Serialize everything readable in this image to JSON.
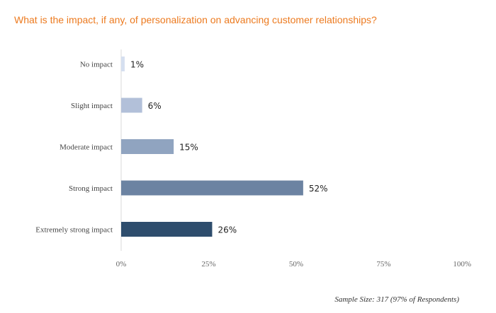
{
  "chart_data": {
    "type": "bar",
    "orientation": "horizontal",
    "title": "What is the impact, if any, of personalization on advancing customer relationships?",
    "categories": [
      "No impact",
      "Slight impact",
      "Moderate impact",
      "Strong impact",
      "Extremely strong impact"
    ],
    "values": [
      1,
      6,
      15,
      52,
      26
    ],
    "value_labels": [
      "1%",
      "6%",
      "15%",
      "52%",
      "26%"
    ],
    "colors": [
      "#d5dff0",
      "#b2c0d9",
      "#90a4c0",
      "#6c83a2",
      "#2e4d6d"
    ],
    "xlim": [
      0,
      100
    ],
    "xticks": [
      "0%",
      "25%",
      "50%",
      "75%",
      "100%"
    ],
    "grid": false,
    "legend": "none"
  },
  "footnote": "Sample Size: 317 (97% of Respondents)"
}
